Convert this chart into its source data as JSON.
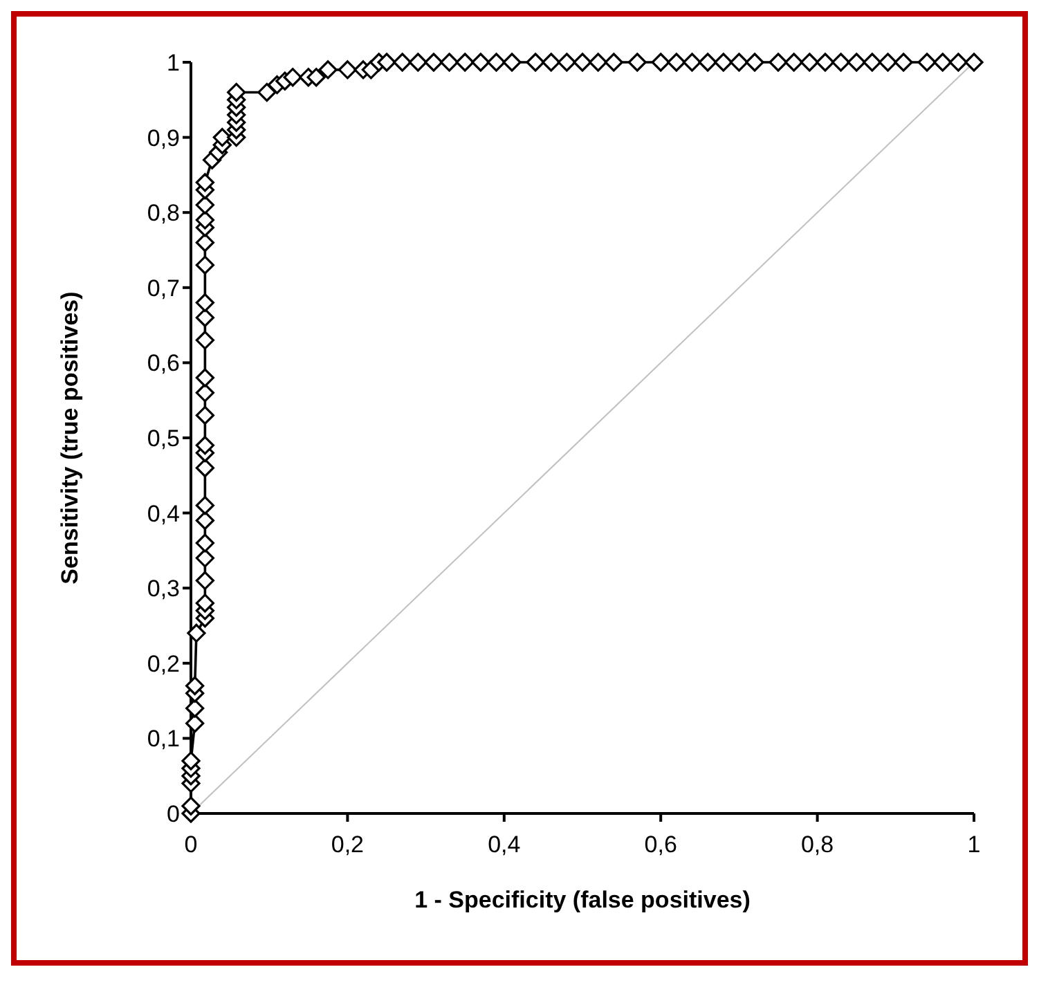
{
  "chart_data": {
    "type": "line",
    "xlabel": "1 - Specificity (false positives)",
    "ylabel": "Sensitivity (true positives)",
    "xlim": [
      0,
      1
    ],
    "ylim": [
      0,
      1
    ],
    "xticks": [
      0,
      {
        "value": 0.2,
        "label": "0,2"
      },
      {
        "value": 0.4,
        "label": "0,4"
      },
      {
        "value": 0.6,
        "label": "0,6"
      },
      {
        "value": 0.8,
        "label": "0,8"
      },
      1
    ],
    "yticks": [
      0,
      {
        "value": 0.1,
        "label": "0,1"
      },
      {
        "value": 0.2,
        "label": "0,2"
      },
      {
        "value": 0.3,
        "label": "0,3"
      },
      {
        "value": 0.4,
        "label": "0,4"
      },
      {
        "value": 0.5,
        "label": "0,5"
      },
      {
        "value": 0.6,
        "label": "0,6"
      },
      {
        "value": 0.7,
        "label": "0,7"
      },
      {
        "value": 0.8,
        "label": "0,8"
      },
      {
        "value": 0.9,
        "label": "0,9"
      },
      1
    ],
    "grid": false,
    "line_style": "solid",
    "series": [
      {
        "marker": "diamond",
        "color": "#000000",
        "x": [
          0,
          0,
          0,
          0,
          0,
          0,
          0.005,
          0.005,
          0.005,
          0.005,
          0.007,
          0.018,
          0.018,
          0.018,
          0.018,
          0.018,
          0.018,
          0.018,
          0.018,
          0.018,
          0.018,
          0.018,
          0.018,
          0.018,
          0.018,
          0.018,
          0.018,
          0.018,
          0.018,
          0.018,
          0.018,
          0.018,
          0.018,
          0.018,
          0.018,
          0.027,
          0.035,
          0.04,
          0.04,
          0.058,
          0.058,
          0.058,
          0.058,
          0.058,
          0.058,
          0.058,
          0.097,
          0.11,
          0.12,
          0.13,
          0.15,
          0.16,
          0.175,
          0.2,
          0.22,
          0.23,
          0.24,
          0.25,
          0.27,
          0.29,
          0.31,
          0.33,
          0.35,
          0.37,
          0.39,
          0.41,
          0.44,
          0.46,
          0.48,
          0.5,
          0.52,
          0.54,
          0.57,
          0.6,
          0.62,
          0.64,
          0.66,
          0.68,
          0.7,
          0.72,
          0.75,
          0.77,
          0.79,
          0.81,
          0.83,
          0.85,
          0.87,
          0.89,
          0.91,
          0.94,
          0.96,
          0.98,
          1
        ],
        "values": [
          0,
          0.01,
          0.04,
          0.05,
          0.06,
          0.07,
          0.12,
          0.14,
          0.16,
          0.17,
          0.24,
          0.26,
          0.27,
          0.28,
          0.31,
          0.34,
          0.36,
          0.39,
          0.41,
          0.46,
          0.48,
          0.49,
          0.53,
          0.56,
          0.58,
          0.63,
          0.66,
          0.68,
          0.73,
          0.76,
          0.78,
          0.79,
          0.81,
          0.83,
          0.84,
          0.87,
          0.88,
          0.89,
          0.9,
          0.9,
          0.91,
          0.92,
          0.93,
          0.94,
          0.95,
          0.96,
          0.96,
          0.97,
          0.975,
          0.98,
          0.98,
          0.98,
          0.99,
          0.99,
          0.99,
          0.99,
          1,
          1,
          1,
          1,
          1,
          1,
          1,
          1,
          1,
          1,
          1,
          1,
          1,
          1,
          1,
          1,
          1,
          1,
          1,
          1,
          1,
          1,
          1,
          1,
          1,
          1,
          1,
          1,
          1,
          1,
          1,
          1,
          1,
          1,
          1,
          1,
          1
        ]
      },
      {
        "marker": "none",
        "color": "#c0c0c0",
        "x": [
          0,
          1
        ],
        "values": [
          0,
          1
        ]
      }
    ]
  }
}
